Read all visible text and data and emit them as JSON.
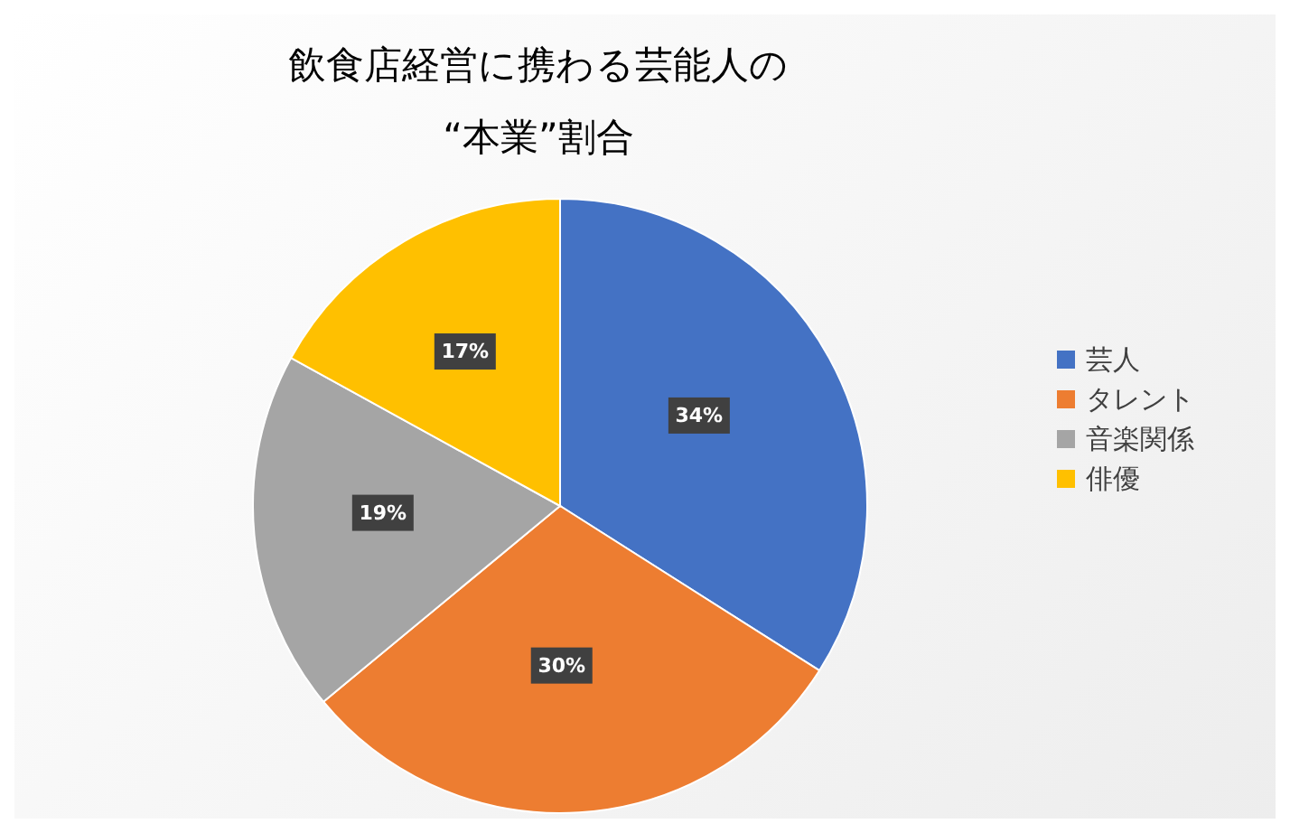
{
  "chart_data": {
    "type": "pie",
    "title": "飲食店経営に携わる芸能人の\n“本業”割合",
    "categories": [
      "芸人",
      "タレント",
      "音楽関係",
      "俳優"
    ],
    "values": [
      34,
      30,
      19,
      17
    ],
    "colors": [
      "#4472c4",
      "#ed7d31",
      "#a5a5a5",
      "#ffc000"
    ],
    "value_labels": [
      "34%",
      "30%",
      "19%",
      "17%"
    ],
    "legend": "right"
  }
}
